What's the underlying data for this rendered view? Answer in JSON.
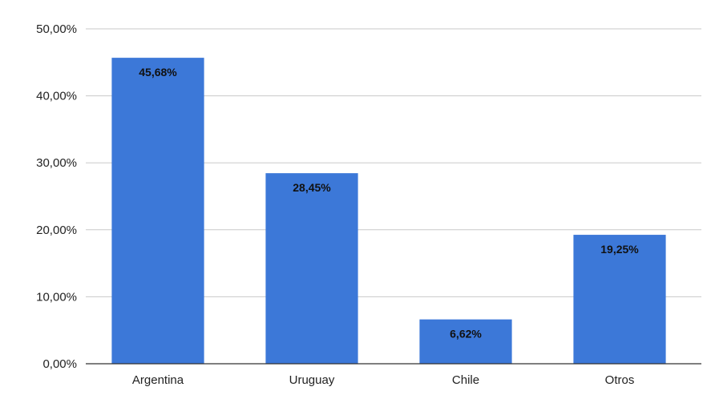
{
  "chart_data": {
    "type": "bar",
    "title": "",
    "xlabel": "",
    "ylabel": "",
    "categories": [
      "Argentina",
      "Uruguay",
      "Chile",
      "Otros"
    ],
    "values": [
      45.68,
      28.45,
      6.62,
      19.25
    ],
    "value_labels": [
      "45,68%",
      "28,45%",
      "6,62%",
      "19,25%"
    ],
    "ylim": [
      0,
      50
    ],
    "yticks": [
      0,
      10,
      20,
      30,
      40,
      50
    ],
    "ytick_labels": [
      "0,00%",
      "10,00%",
      "20,00%",
      "30,00%",
      "40,00%",
      "50,00%"
    ],
    "grid": true,
    "legend": "none",
    "bar_color": "#3c78d8"
  }
}
